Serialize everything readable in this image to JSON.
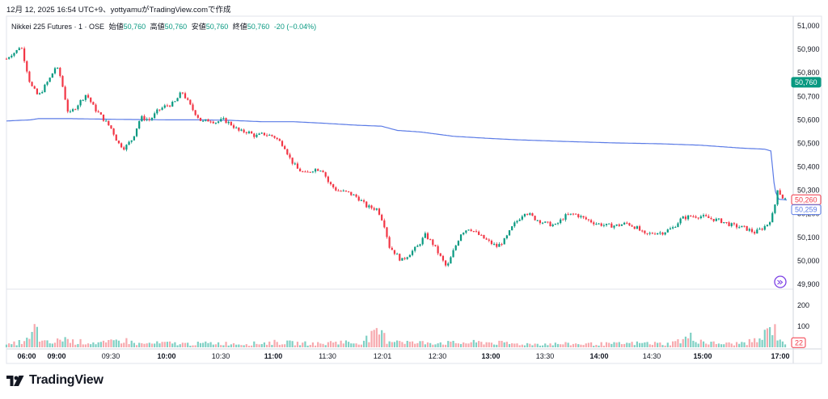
{
  "caption": "12月 12, 2025 16:54 UTC+9、yottyamuがTradingView.comで作成",
  "legend": {
    "symbol": "Nikkei 225 Futures · 1 · OSE",
    "open_label": "始値",
    "open": "50,760",
    "high_label": "高値",
    "high": "50,760",
    "low_label": "安値",
    "low": "50,760",
    "close_label": "終値",
    "close": "50,760",
    "change": "-20 (−0.04%)"
  },
  "brand": {
    "name": "TradingView",
    "logo_icon": "tradingview-logo-icon"
  },
  "colors": {
    "up": "#089981",
    "down": "#f23645",
    "ma": "#5b7be6",
    "vol_up": "#7fd0c4",
    "vol_down": "#f7a9ae"
  },
  "chart_data": {
    "type": "candlestick",
    "price_axis": {
      "ticks": [
        "51,000",
        "50,900",
        "50,800",
        "50,700",
        "50,600",
        "50,500",
        "50,400",
        "50,300",
        "50,200",
        "50,100",
        "50,000",
        "49,900"
      ],
      "ylim": [
        49900,
        51000
      ]
    },
    "price_labels": [
      {
        "name": "last-price",
        "text": "50,760",
        "value": 50760,
        "color": "#089981"
      },
      {
        "name": "red-price",
        "text": "50,260",
        "value": 50260,
        "color": "#f23645"
      },
      {
        "name": "blue-price",
        "text": "50,259",
        "value": 50259,
        "color": "#5b7be6"
      }
    ],
    "volume_axis": {
      "ticks": [
        "200",
        "100"
      ],
      "last": "22"
    },
    "time_axis": [
      "06:00",
      "09:00",
      "09:30",
      "10:00",
      "10:30",
      "11:00",
      "11:30",
      "12:01",
      "12:30",
      "13:00",
      "13:30",
      "14:00",
      "14:30",
      "15:00",
      "17:00"
    ],
    "price_path": [
      [
        0,
        50860
      ],
      [
        6,
        50880
      ],
      [
        12,
        50890
      ],
      [
        18,
        50920
      ],
      [
        30,
        50750
      ],
      [
        40,
        50700
      ],
      [
        55,
        50780
      ],
      [
        62,
        50830
      ],
      [
        68,
        50780
      ],
      [
        78,
        50620
      ],
      [
        88,
        50660
      ],
      [
        100,
        50710
      ],
      [
        110,
        50650
      ],
      [
        120,
        50610
      ],
      [
        132,
        50560
      ],
      [
        140,
        50500
      ],
      [
        148,
        50480
      ],
      [
        158,
        50520
      ],
      [
        168,
        50610
      ],
      [
        180,
        50600
      ],
      [
        190,
        50640
      ],
      [
        200,
        50660
      ],
      [
        210,
        50670
      ],
      [
        220,
        50720
      ],
      [
        232,
        50650
      ],
      [
        245,
        50590
      ],
      [
        255,
        50600
      ],
      [
        262,
        50590
      ],
      [
        272,
        50600
      ],
      [
        282,
        50580
      ],
      [
        292,
        50550
      ],
      [
        302,
        50550
      ],
      [
        312,
        50530
      ],
      [
        322,
        50540
      ],
      [
        335,
        50530
      ],
      [
        348,
        50490
      ],
      [
        356,
        50430
      ],
      [
        365,
        50390
      ],
      [
        375,
        50370
      ],
      [
        385,
        50390
      ],
      [
        396,
        50390
      ],
      [
        404,
        50330
      ],
      [
        414,
        50300
      ],
      [
        428,
        50290
      ],
      [
        440,
        50270
      ],
      [
        452,
        50230
      ],
      [
        465,
        50220
      ],
      [
        473,
        50160
      ],
      [
        480,
        50060
      ],
      [
        488,
        50030
      ],
      [
        495,
        50000
      ],
      [
        505,
        50030
      ],
      [
        515,
        50060
      ],
      [
        525,
        50110
      ],
      [
        535,
        50070
      ],
      [
        545,
        50010
      ],
      [
        552,
        49970
      ],
      [
        560,
        50040
      ],
      [
        570,
        50120
      ],
      [
        580,
        50140
      ],
      [
        592,
        50110
      ],
      [
        605,
        50080
      ],
      [
        615,
        50060
      ],
      [
        625,
        50090
      ],
      [
        635,
        50150
      ],
      [
        650,
        50210
      ],
      [
        662,
        50180
      ],
      [
        675,
        50160
      ],
      [
        688,
        50150
      ],
      [
        700,
        50190
      ],
      [
        712,
        50200
      ],
      [
        724,
        50180
      ],
      [
        738,
        50160
      ],
      [
        752,
        50150
      ],
      [
        765,
        50150
      ],
      [
        778,
        50160
      ],
      [
        790,
        50140
      ],
      [
        800,
        50110
      ],
      [
        812,
        50120
      ],
      [
        822,
        50120
      ],
      [
        835,
        50140
      ],
      [
        846,
        50180
      ],
      [
        858,
        50190
      ],
      [
        870,
        50190
      ],
      [
        882,
        50180
      ],
      [
        895,
        50170
      ],
      [
        910,
        50150
      ],
      [
        925,
        50140
      ],
      [
        938,
        50120
      ],
      [
        948,
        50140
      ],
      [
        955,
        50160
      ],
      [
        962,
        50210
      ],
      [
        966,
        50310
      ],
      [
        972,
        50270
      ],
      [
        978,
        50260
      ]
    ],
    "volume_profile": [
      [
        0,
        12
      ],
      [
        30,
        45
      ],
      [
        36,
        120
      ],
      [
        44,
        30
      ],
      [
        60,
        25
      ],
      [
        72,
        60
      ],
      [
        80,
        35
      ],
      [
        100,
        30
      ],
      [
        125,
        25
      ],
      [
        145,
        45
      ],
      [
        165,
        20
      ],
      [
        200,
        25
      ],
      [
        230,
        20
      ],
      [
        260,
        25
      ],
      [
        300,
        20
      ],
      [
        340,
        30
      ],
      [
        360,
        25
      ],
      [
        400,
        20
      ],
      [
        410,
        35
      ],
      [
        440,
        25
      ],
      [
        470,
        90
      ],
      [
        476,
        40
      ],
      [
        490,
        45
      ],
      [
        510,
        25
      ],
      [
        530,
        30
      ],
      [
        560,
        25
      ],
      [
        600,
        30
      ],
      [
        640,
        20
      ],
      [
        680,
        20
      ],
      [
        720,
        20
      ],
      [
        760,
        20
      ],
      [
        800,
        25
      ],
      [
        830,
        20
      ],
      [
        858,
        60
      ],
      [
        880,
        25
      ],
      [
        910,
        20
      ],
      [
        930,
        30
      ],
      [
        945,
        45
      ],
      [
        960,
        125
      ],
      [
        966,
        75
      ],
      [
        972,
        40
      ],
      [
        978,
        22
      ]
    ],
    "moving_average": [
      [
        0,
        50595
      ],
      [
        30,
        50600
      ],
      [
        40,
        50605
      ],
      [
        80,
        50605
      ],
      [
        140,
        50602
      ],
      [
        200,
        50600
      ],
      [
        240,
        50600
      ],
      [
        280,
        50598
      ],
      [
        320,
        50592
      ],
      [
        360,
        50592
      ],
      [
        400,
        50585
      ],
      [
        440,
        50577
      ],
      [
        470,
        50573
      ],
      [
        490,
        50555
      ],
      [
        520,
        50548
      ],
      [
        560,
        50530
      ],
      [
        600,
        50522
      ],
      [
        640,
        50515
      ],
      [
        700,
        50508
      ],
      [
        760,
        50502
      ],
      [
        820,
        50498
      ],
      [
        870,
        50492
      ],
      [
        920,
        50480
      ],
      [
        950,
        50475
      ],
      [
        958,
        50468
      ],
      [
        963,
        50300
      ],
      [
        968,
        50262
      ],
      [
        978,
        50259
      ]
    ]
  }
}
